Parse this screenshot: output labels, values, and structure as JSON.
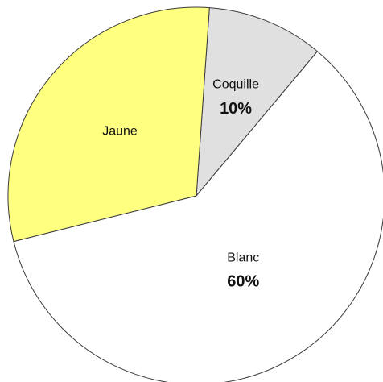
{
  "chart_data": {
    "type": "pie",
    "title": "",
    "start_angle_deg": 4,
    "direction": "clockwise",
    "slices": [
      {
        "label": "Coquille",
        "value": 10,
        "value_label": "10%",
        "color": "#e0e0e0"
      },
      {
        "label": "Blanc",
        "value": 60,
        "value_label": "60%",
        "color": "#ffffff"
      },
      {
        "label": "Jaune",
        "value": 30,
        "value_label": "",
        "color": "#ffff80"
      }
    ],
    "outline_color": "#3a3a3a",
    "legend": "none"
  }
}
